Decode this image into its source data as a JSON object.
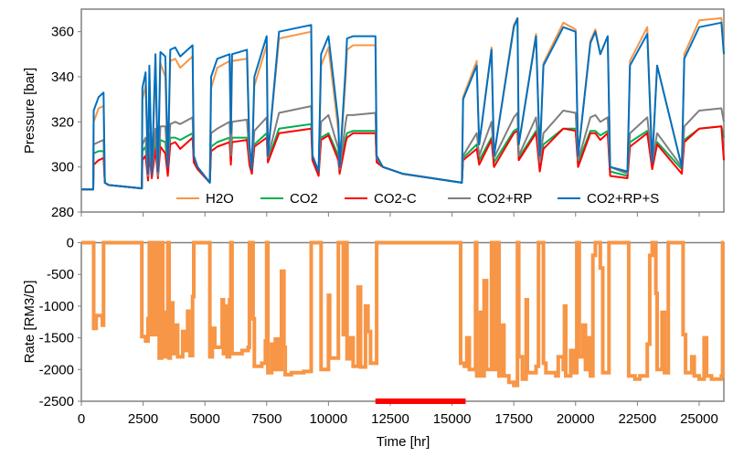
{
  "chart_data": [
    {
      "type": "line",
      "title": "",
      "xlabel": "",
      "ylabel": "Pressure [bar]",
      "xlim": [
        0,
        26000
      ],
      "ylim": [
        280,
        370
      ],
      "yticks": [
        280,
        300,
        320,
        340,
        360
      ],
      "xticks": [
        0,
        2500,
        5000,
        7500,
        10000,
        12500,
        15000,
        17500,
        20000,
        22500,
        25000
      ],
      "show_xtick_labels": false,
      "grid": false,
      "legend": "bottom",
      "x": [
        0,
        480,
        500,
        700,
        900,
        950,
        1100,
        2450,
        2470,
        2600,
        2700,
        2750,
        2850,
        3000,
        3100,
        3200,
        3400,
        3500,
        3600,
        3800,
        4000,
        4500,
        4550,
        4700,
        5200,
        5250,
        5500,
        6000,
        6050,
        6100,
        6700,
        6800,
        6900,
        7000,
        7500,
        7550,
        8000,
        9300,
        9350,
        9600,
        9700,
        10000,
        10400,
        10450,
        10700,
        10750,
        11000,
        11900,
        11950,
        12200,
        13000,
        15400,
        15450,
        16000,
        16100,
        16600,
        16700,
        17500,
        17650,
        17700,
        18400,
        18550,
        18700,
        19500,
        20000,
        20100,
        20600,
        20800,
        21000,
        21300,
        21400,
        22100,
        22200,
        22900,
        23100,
        23300,
        24300,
        24400,
        25000,
        25900,
        26000
      ],
      "series": [
        {
          "name": "H2O",
          "color": "#f79646",
          "values": [
            290,
            290,
            320,
            326,
            327,
            293,
            292,
            290.5,
            330,
            336,
            297,
            337,
            297,
            345,
            296,
            346,
            340,
            300,
            347,
            348,
            344,
            349,
            305,
            300,
            293,
            335,
            344,
            347,
            310,
            347,
            348,
            308,
            299,
            336,
            354,
            305,
            357,
            360,
            305,
            298,
            345,
            353,
            316,
            300,
            340,
            352,
            354,
            354,
            304,
            300,
            297,
            293,
            331,
            347,
            310,
            353,
            305,
            363,
            366,
            310,
            359,
            305,
            346,
            364,
            361,
            305,
            356,
            361,
            350,
            358,
            300,
            298,
            347,
            362,
            302,
            345,
            300,
            350,
            365,
            366,
            352
          ]
        },
        {
          "name": "CO2",
          "color": "#00b050",
          "values": [
            290,
            290,
            306,
            307,
            307,
            293,
            292,
            290.5,
            307,
            309,
            295,
            310,
            296,
            311,
            296,
            312,
            311,
            298,
            313,
            313,
            312,
            315,
            303,
            300,
            293,
            309,
            311,
            313,
            303,
            313,
            313,
            303,
            298,
            310,
            315,
            303,
            317,
            319,
            305,
            298,
            313,
            315,
            305,
            298,
            313,
            315,
            316,
            316,
            303,
            300,
            297,
            293,
            304,
            310,
            303,
            313,
            302,
            316,
            317,
            304,
            316,
            300,
            310,
            317,
            317,
            302,
            316,
            316,
            314,
            316,
            298,
            296,
            311,
            316,
            300,
            311,
            299,
            312,
            317,
            318,
            313
          ]
        },
        {
          "name": "CO2-C",
          "color": "#ff0000",
          "values": [
            290,
            290,
            301,
            303,
            304,
            293,
            292,
            290.5,
            303,
            305,
            294,
            306,
            295,
            308,
            295,
            309,
            306,
            296,
            310,
            311,
            308,
            313,
            302,
            299,
            293,
            307,
            309,
            311,
            301,
            311,
            312,
            301,
            297,
            309,
            313,
            302,
            315,
            317,
            303,
            296,
            312,
            314,
            303,
            297,
            311,
            313,
            315,
            315,
            302,
            300,
            297,
            293,
            303,
            308,
            301,
            312,
            300,
            315,
            316,
            303,
            315,
            298,
            308,
            317,
            316,
            300,
            315,
            315,
            312,
            315,
            296,
            295,
            309,
            315,
            299,
            310,
            297,
            311,
            317,
            318,
            303
          ]
        },
        {
          "name": "CO2+RP",
          "color": "#7f7f7f",
          "values": [
            290,
            290,
            310,
            311,
            312,
            293,
            292,
            290.5,
            310,
            313,
            296,
            315,
            297,
            317,
            296,
            318,
            318,
            300,
            319,
            320,
            319,
            322,
            305,
            300,
            293,
            315,
            317,
            320,
            305,
            320,
            321,
            305,
            299,
            316,
            322,
            304,
            324,
            327,
            305,
            298,
            320,
            323,
            308,
            299,
            320,
            323,
            323,
            324,
            304,
            300,
            297,
            293,
            305,
            315,
            305,
            320,
            304,
            322,
            324,
            305,
            322,
            302,
            315,
            325,
            324,
            303,
            322,
            323,
            320,
            322,
            300,
            297,
            315,
            322,
            302,
            315,
            300,
            318,
            325,
            326,
            320
          ]
        },
        {
          "name": "CO2+RP+S",
          "color": "#0070c0",
          "values": [
            290,
            290,
            325,
            331,
            333,
            293,
            292,
            290.5,
            335,
            342,
            297,
            345,
            297,
            350,
            298,
            351,
            349,
            300,
            352,
            353,
            349,
            354,
            305,
            300,
            293,
            340,
            348,
            350,
            315,
            350,
            352,
            310,
            299,
            340,
            358,
            305,
            360,
            363,
            305,
            298,
            350,
            358,
            320,
            300,
            345,
            357,
            358,
            358,
            305,
            300,
            297,
            293,
            330,
            345,
            310,
            352,
            305,
            362,
            366,
            310,
            358,
            305,
            345,
            362,
            360,
            305,
            355,
            360,
            350,
            358,
            300,
            298,
            345,
            359,
            302,
            345,
            300,
            348,
            362,
            364,
            350
          ]
        }
      ]
    },
    {
      "type": "line",
      "title": "",
      "xlabel": "Time [hr]",
      "ylabel": "Rate [RM3/D]",
      "xlim": [
        0,
        26000
      ],
      "ylim": [
        -2500,
        0
      ],
      "yticks": [
        -2500,
        -2000,
        -1500,
        -1000,
        -500,
        0
      ],
      "xticks": [
        0,
        2500,
        5000,
        7500,
        10000,
        12500,
        15000,
        17500,
        20000,
        22500,
        25000
      ],
      "grid": false,
      "step": true,
      "series": [
        {
          "color": "#f79646",
          "points": [
            [
              0,
              0
            ],
            [
              500,
              -1350
            ],
            [
              600,
              -1150
            ],
            [
              850,
              -1300
            ],
            [
              900,
              0
            ],
            [
              2450,
              -1480
            ],
            [
              2600,
              -1550
            ],
            [
              2700,
              -1200
            ],
            [
              2750,
              0
            ],
            [
              2800,
              -1450
            ],
            [
              2900,
              0
            ],
            [
              3000,
              -1450
            ],
            [
              3100,
              0
            ],
            [
              3150,
              -1820
            ],
            [
              3250,
              0
            ],
            [
              3300,
              -1100
            ],
            [
              3400,
              -1800
            ],
            [
              3500,
              0
            ],
            [
              3550,
              -1820
            ],
            [
              3600,
              -950
            ],
            [
              3700,
              -1750
            ],
            [
              3800,
              -1300
            ],
            [
              3900,
              -1800
            ],
            [
              4100,
              -1400
            ],
            [
              4200,
              -1700
            ],
            [
              4300,
              -1080
            ],
            [
              4350,
              -1500
            ],
            [
              4400,
              -1780
            ],
            [
              4500,
              -850
            ],
            [
              4550,
              0
            ],
            [
              5200,
              -1800
            ],
            [
              5300,
              -1350
            ],
            [
              5400,
              -1650
            ],
            [
              5700,
              -900
            ],
            [
              5750,
              -1750
            ],
            [
              5850,
              -1000
            ],
            [
              5900,
              -1800
            ],
            [
              6000,
              -900
            ],
            [
              6050,
              0
            ],
            [
              6100,
              -1750
            ],
            [
              6500,
              -1700
            ],
            [
              6750,
              -1650
            ],
            [
              6800,
              0
            ],
            [
              6950,
              -1200
            ],
            [
              7000,
              -1950
            ],
            [
              7300,
              -1900
            ],
            [
              7450,
              -1550
            ],
            [
              7500,
              0
            ],
            [
              7550,
              -2050
            ],
            [
              7700,
              -1600
            ],
            [
              7800,
              -2000
            ],
            [
              7850,
              -1520
            ],
            [
              8000,
              -2000
            ],
            [
              8100,
              -450
            ],
            [
              8200,
              -1650
            ],
            [
              8250,
              -2080
            ],
            [
              8500,
              -2050
            ],
            [
              9000,
              -2030
            ],
            [
              9300,
              0
            ],
            [
              9700,
              -2000
            ],
            [
              10000,
              -830
            ],
            [
              10050,
              -1820
            ],
            [
              10400,
              0
            ],
            [
              10600,
              -1450
            ],
            [
              10700,
              0
            ],
            [
              10750,
              -1830
            ],
            [
              10900,
              -1500
            ],
            [
              11000,
              -1950
            ],
            [
              11200,
              -700
            ],
            [
              11300,
              -1960
            ],
            [
              11500,
              -1000
            ],
            [
              11600,
              -1400
            ],
            [
              11700,
              -1900
            ],
            [
              11950,
              0
            ],
            [
              15350,
              -1900
            ],
            [
              15500,
              -1950
            ],
            [
              15600,
              -1500
            ],
            [
              15700,
              -2000
            ],
            [
              15950,
              0
            ],
            [
              16000,
              -2100
            ],
            [
              16150,
              -1100
            ],
            [
              16250,
              -2100
            ],
            [
              16300,
              -600
            ],
            [
              16400,
              -2000
            ],
            [
              16600,
              0
            ],
            [
              16700,
              -2000
            ],
            [
              16800,
              0
            ],
            [
              16900,
              -2100
            ],
            [
              17000,
              -1300
            ],
            [
              17100,
              -2100
            ],
            [
              17300,
              -2200
            ],
            [
              17500,
              -2250
            ],
            [
              17650,
              0
            ],
            [
              17700,
              -1800
            ],
            [
              17850,
              -2150
            ],
            [
              18000,
              -900
            ],
            [
              18050,
              -2050
            ],
            [
              18400,
              -1950
            ],
            [
              18500,
              0
            ],
            [
              18700,
              -1900
            ],
            [
              18800,
              -2050
            ],
            [
              19200,
              -2100
            ],
            [
              19300,
              -1800
            ],
            [
              19500,
              -2000
            ],
            [
              19550,
              -1000
            ],
            [
              19600,
              -2100
            ],
            [
              19800,
              -1700
            ],
            [
              19900,
              -2050
            ],
            [
              20050,
              0
            ],
            [
              20150,
              -1800
            ],
            [
              20300,
              -1300
            ],
            [
              20400,
              -2000
            ],
            [
              20500,
              -1500
            ],
            [
              20600,
              -2100
            ],
            [
              20700,
              -200
            ],
            [
              20800,
              0
            ],
            [
              21000,
              -400
            ],
            [
              21100,
              -2050
            ],
            [
              21350,
              0
            ],
            [
              22150,
              -2100
            ],
            [
              22400,
              -2150
            ],
            [
              22600,
              -2100
            ],
            [
              22900,
              -1600
            ],
            [
              23000,
              -200
            ],
            [
              23100,
              0
            ],
            [
              23250,
              -800
            ],
            [
              23300,
              -2000
            ],
            [
              23500,
              -1100
            ],
            [
              23600,
              -2050
            ],
            [
              23750,
              0
            ],
            [
              24350,
              -1450
            ],
            [
              24450,
              -2050
            ],
            [
              24700,
              -1800
            ],
            [
              24800,
              -2100
            ],
            [
              25000,
              -2150
            ],
            [
              25200,
              -1500
            ],
            [
              25300,
              -2100
            ],
            [
              25500,
              -2150
            ],
            [
              25900,
              -2100
            ],
            [
              25950,
              0
            ]
          ]
        }
      ],
      "annotations": [
        {
          "type": "span",
          "x": [
            11900,
            15550
          ],
          "color": "#ff0000"
        }
      ]
    }
  ]
}
